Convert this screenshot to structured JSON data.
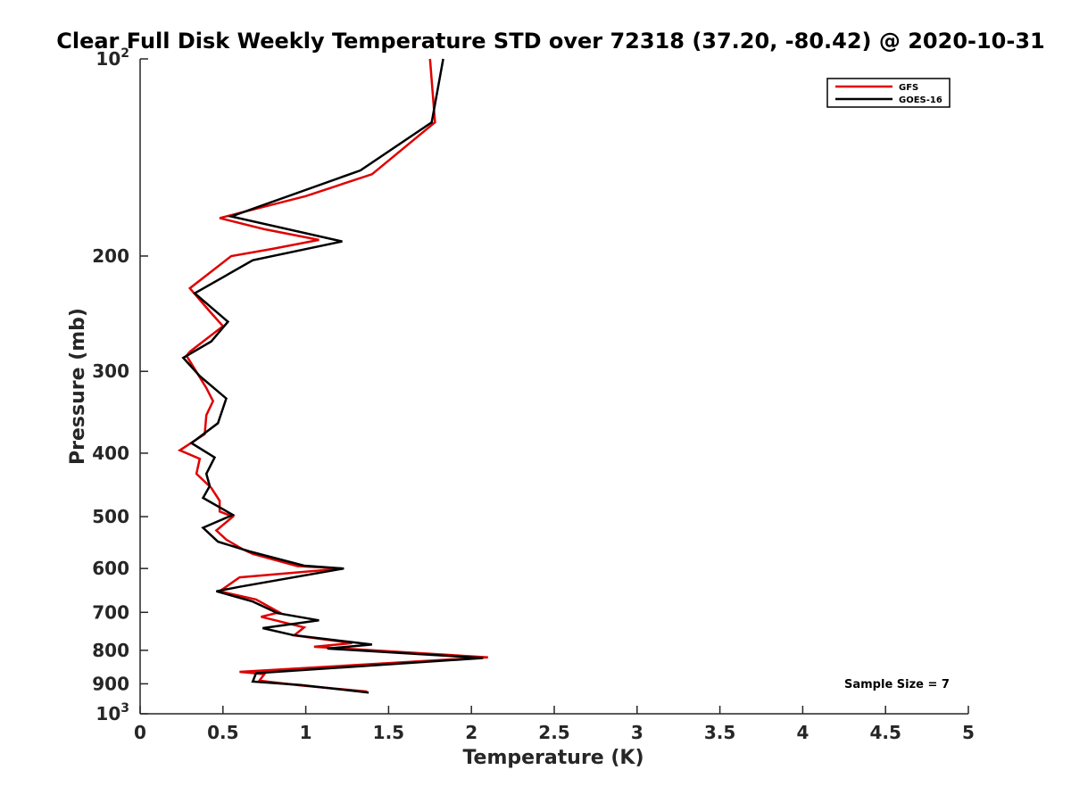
{
  "chart_data": {
    "type": "line",
    "title": "Clear Full Disk Weekly Temperature STD over 72318 (37.20, -80.42) @ 2020-10-31",
    "xlabel": "Temperature (K)",
    "ylabel": "Pressure (mb)",
    "xlim": [
      0,
      5
    ],
    "ylim": [
      100,
      1000
    ],
    "y_scale": "log",
    "y_reversed": true,
    "x_ticks": [
      "0",
      "0.5",
      "1",
      "1.5",
      "2",
      "2.5",
      "3",
      "3.5",
      "4",
      "4.5",
      "5"
    ],
    "x_tick_values": [
      0,
      0.5,
      1,
      1.5,
      2,
      2.5,
      3,
      3.5,
      4,
      4.5,
      5
    ],
    "y_ticks": [
      {
        "value": 100,
        "base": "10",
        "exp": "2"
      },
      {
        "value": 200,
        "label": "200"
      },
      {
        "value": 300,
        "label": "300"
      },
      {
        "value": 400,
        "label": "400"
      },
      {
        "value": 500,
        "label": "500"
      },
      {
        "value": 600,
        "label": "600"
      },
      {
        "value": 700,
        "label": "700"
      },
      {
        "value": 800,
        "label": "800"
      },
      {
        "value": 900,
        "label": "900"
      },
      {
        "value": 1000,
        "base": "10",
        "exp": "3"
      }
    ],
    "grid": false,
    "legend_position": "top-right",
    "annotation": "Sample Size = 7",
    "series": [
      {
        "name": "GFS",
        "color": "#e00000",
        "points": [
          [
            1.75,
            100
          ],
          [
            1.78,
            125
          ],
          [
            1.4,
            150
          ],
          [
            1.0,
            162
          ],
          [
            0.48,
            175
          ],
          [
            0.75,
            182
          ],
          [
            1.08,
            189
          ],
          [
            0.8,
            195
          ],
          [
            0.55,
            200
          ],
          [
            0.3,
            224
          ],
          [
            0.42,
            243
          ],
          [
            0.5,
            256
          ],
          [
            0.3,
            280
          ],
          [
            0.28,
            284
          ],
          [
            0.4,
            318
          ],
          [
            0.44,
            333
          ],
          [
            0.4,
            350
          ],
          [
            0.39,
            374
          ],
          [
            0.24,
            396
          ],
          [
            0.36,
            408
          ],
          [
            0.34,
            430
          ],
          [
            0.43,
            452
          ],
          [
            0.48,
            473
          ],
          [
            0.48,
            491
          ],
          [
            0.56,
            500
          ],
          [
            0.46,
            525
          ],
          [
            0.52,
            542
          ],
          [
            0.62,
            561
          ],
          [
            0.68,
            570
          ],
          [
            0.95,
            595
          ],
          [
            1.22,
            600
          ],
          [
            0.6,
            619
          ],
          [
            0.48,
            650
          ],
          [
            0.7,
            669
          ],
          [
            0.84,
            700
          ],
          [
            0.73,
            711
          ],
          [
            0.99,
            738
          ],
          [
            0.93,
            759
          ],
          [
            1.28,
            780
          ],
          [
            1.05,
            790
          ],
          [
            2.1,
            820
          ],
          [
            0.6,
            863
          ],
          [
            0.75,
            870
          ],
          [
            0.72,
            890
          ],
          [
            0.97,
            905
          ],
          [
            1.37,
            925
          ]
        ]
      },
      {
        "name": "GOES-16",
        "color": "#000000",
        "points": [
          [
            1.83,
            100
          ],
          [
            1.76,
            125
          ],
          [
            1.33,
            148
          ],
          [
            0.55,
            174
          ],
          [
            1.22,
            190
          ],
          [
            0.68,
            203
          ],
          [
            0.33,
            228
          ],
          [
            0.53,
            252
          ],
          [
            0.43,
            270
          ],
          [
            0.26,
            286
          ],
          [
            0.36,
            305
          ],
          [
            0.52,
            330
          ],
          [
            0.47,
            360
          ],
          [
            0.31,
            386
          ],
          [
            0.45,
            406
          ],
          [
            0.4,
            430
          ],
          [
            0.42,
            449
          ],
          [
            0.38,
            468
          ],
          [
            0.56,
            497
          ],
          [
            0.38,
            520
          ],
          [
            0.47,
            546
          ],
          [
            0.66,
            565
          ],
          [
            0.99,
            594
          ],
          [
            1.23,
            600
          ],
          [
            0.6,
            640
          ],
          [
            0.46,
            650
          ],
          [
            0.68,
            674
          ],
          [
            0.83,
            702
          ],
          [
            1.08,
            720
          ],
          [
            0.74,
            740
          ],
          [
            0.92,
            758
          ],
          [
            1.4,
            784
          ],
          [
            1.13,
            795
          ],
          [
            2.07,
            822
          ],
          [
            0.7,
            867
          ],
          [
            0.68,
            893
          ],
          [
            0.97,
            904
          ],
          [
            1.38,
            928
          ]
        ]
      }
    ]
  }
}
